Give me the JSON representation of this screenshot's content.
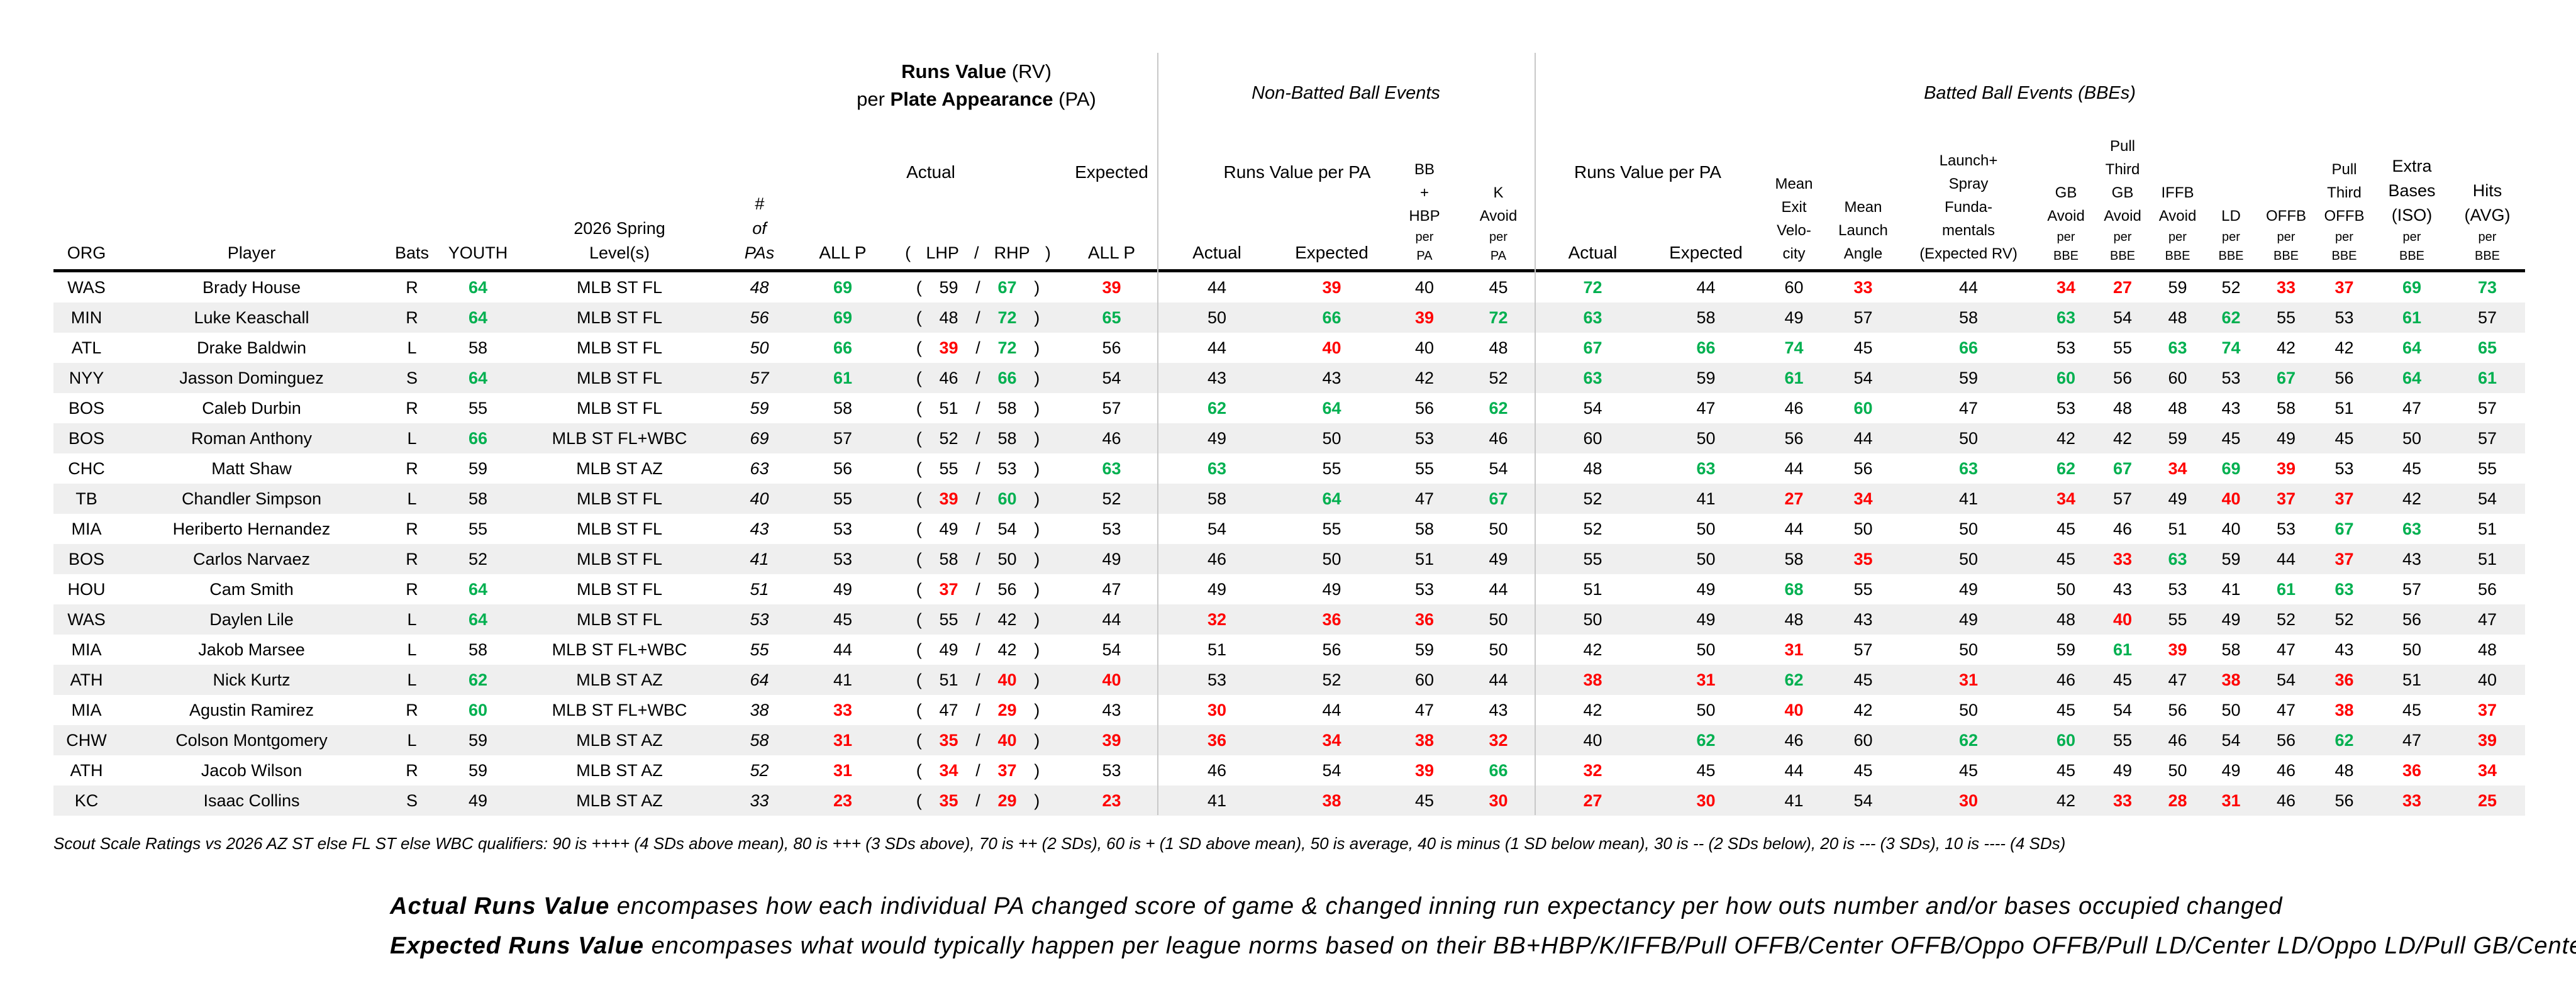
{
  "colors": {
    "green": "#00B050",
    "red": "#FF0000",
    "stripe": "#EFEFEF",
    "divider": "#C8C8C8"
  },
  "punct": {
    "open": "(",
    "slash": "/",
    "close": ")"
  },
  "header": {
    "rv": {
      "bold1": "Runs Value",
      "reg1": " (RV)",
      "reg2a": "per ",
      "bold2": "Plate Appearance",
      "reg2b": " (PA)"
    },
    "nbb_title": "Non-Batted Ball Events",
    "bbe_title": "Batted Ball Events (BBEs)",
    "actual_label": "Actual",
    "expected_label": "Expected",
    "rv_per_pa_label": "Runs Value per PA"
  },
  "columns": [
    {
      "key": "org",
      "header": [
        {
          "t": "ORG",
          "s": "lg"
        }
      ]
    },
    {
      "key": "player",
      "header": [
        {
          "t": "Player",
          "s": "lg"
        }
      ]
    },
    {
      "key": "bats",
      "header": [
        {
          "t": "Bats",
          "s": "lg"
        }
      ]
    },
    {
      "key": "youth",
      "header": [
        {
          "t": "YOUTH",
          "s": "lg"
        }
      ]
    },
    {
      "key": "level",
      "header": [
        {
          "t": "2026 Spring",
          "s": "lg"
        },
        {
          "t": "Level(s)",
          "s": "lg"
        }
      ]
    },
    {
      "key": "pas",
      "italic": true,
      "header": [
        {
          "t": "#",
          "s": "lg"
        },
        {
          "t": "of",
          "s": "lg"
        },
        {
          "t": "PAs",
          "s": "lg"
        }
      ]
    },
    {
      "key": "allp_actual",
      "header": [
        {
          "t": "ALL P",
          "s": "big"
        }
      ]
    },
    {
      "key": "lhp_rhp",
      "type": "pair",
      "pair_header": [
        "(",
        "LHP",
        "/",
        "RHP",
        ")"
      ]
    },
    {
      "key": "allp_expected",
      "header": [
        {
          "t": "ALL P",
          "s": "big"
        }
      ]
    },
    {
      "key": "nbb_actual",
      "header": [
        {
          "t": "Actual",
          "s": "big"
        }
      ]
    },
    {
      "key": "nbb_expected",
      "header": [
        {
          "t": "Expected",
          "s": "big"
        }
      ]
    },
    {
      "key": "bb_hbp",
      "header": [
        "BB",
        "+",
        "HBP",
        {
          "t": "per",
          "s": "sm"
        },
        {
          "t": "PA",
          "s": "sm"
        }
      ]
    },
    {
      "key": "k_avoid",
      "header": [
        "K",
        "Avoid",
        {
          "t": "per",
          "s": "sm"
        },
        {
          "t": "PA",
          "s": "sm"
        }
      ]
    },
    {
      "key": "bbe_actual",
      "header": [
        {
          "t": "Actual",
          "s": "big"
        }
      ]
    },
    {
      "key": "bbe_expected",
      "header": [
        {
          "t": "Expected",
          "s": "big"
        }
      ]
    },
    {
      "key": "mean_ev",
      "header": [
        "Mean",
        "Exit",
        "Velo-",
        "city"
      ]
    },
    {
      "key": "mean_la",
      "header": [
        "Mean",
        "Launch",
        "Angle"
      ]
    },
    {
      "key": "launch_spray",
      "header": [
        "Launch+",
        "Spray",
        "Funda-",
        "mentals",
        "(Expected RV)"
      ]
    },
    {
      "key": "gb_avoid",
      "header": [
        "GB",
        "Avoid",
        {
          "t": "per",
          "s": "sm"
        },
        {
          "t": "BBE",
          "s": "sm"
        }
      ]
    },
    {
      "key": "pull_third_gb_avoid",
      "header": [
        "Pull",
        "Third",
        "GB",
        "Avoid",
        {
          "t": "per",
          "s": "sm"
        },
        {
          "t": "BBE",
          "s": "sm"
        }
      ]
    },
    {
      "key": "iffb_avoid",
      "header": [
        "IFFB",
        "Avoid",
        {
          "t": "per",
          "s": "sm"
        },
        {
          "t": "BBE",
          "s": "sm"
        }
      ]
    },
    {
      "key": "ld",
      "header": [
        "LD",
        {
          "t": "per",
          "s": "sm"
        },
        {
          "t": "BBE",
          "s": "sm"
        }
      ]
    },
    {
      "key": "offb",
      "header": [
        "OFFB",
        {
          "t": "per",
          "s": "sm"
        },
        {
          "t": "BBE",
          "s": "sm"
        }
      ]
    },
    {
      "key": "pull_third_offb",
      "header": [
        "Pull",
        "Third",
        "OFFB",
        {
          "t": "per",
          "s": "sm"
        },
        {
          "t": "BBE",
          "s": "sm"
        }
      ]
    },
    {
      "key": "iso",
      "header": [
        {
          "t": "Extra",
          "s": "lg"
        },
        {
          "t": "Bases",
          "s": "lg"
        },
        {
          "t": "(ISO)",
          "s": "lg"
        },
        {
          "t": "per",
          "s": "sm"
        },
        {
          "t": "BBE",
          "s": "sm"
        }
      ]
    },
    {
      "key": "avg",
      "header": [
        {
          "t": "Hits",
          "s": "lg"
        },
        {
          "t": "(AVG)",
          "s": "lg"
        },
        {
          "t": "per",
          "s": "sm"
        },
        {
          "t": "BBE",
          "s": "sm"
        }
      ]
    }
  ],
  "rows": [
    {
      "cells": [
        "WAS",
        "Brady House",
        "R",
        [
          "64",
          "g"
        ],
        "MLB ST FL",
        "48",
        [
          "69",
          "g"
        ],
        "59",
        [
          "67",
          "g"
        ],
        [
          "39",
          "r"
        ],
        "44",
        [
          "39",
          "r"
        ],
        "40",
        "45",
        [
          "72",
          "g"
        ],
        "44",
        "60",
        [
          "33",
          "r"
        ],
        "44",
        [
          "34",
          "r"
        ],
        [
          "27",
          "r"
        ],
        "59",
        "52",
        [
          "33",
          "r"
        ],
        [
          "37",
          "r"
        ],
        [
          "69",
          "g"
        ],
        [
          "73",
          "g"
        ]
      ]
    },
    {
      "cells": [
        "MIN",
        "Luke Keaschall",
        "R",
        [
          "64",
          "g"
        ],
        "MLB ST FL",
        "56",
        [
          "69",
          "g"
        ],
        "48",
        [
          "72",
          "g"
        ],
        [
          "65",
          "g"
        ],
        "50",
        [
          "66",
          "g"
        ],
        [
          "39",
          "r"
        ],
        [
          "72",
          "g"
        ],
        [
          "63",
          "g"
        ],
        "58",
        "49",
        "57",
        "58",
        [
          "63",
          "g"
        ],
        "54",
        "48",
        [
          "62",
          "g"
        ],
        "55",
        "53",
        [
          "61",
          "g"
        ],
        "57"
      ]
    },
    {
      "cells": [
        "ATL",
        "Drake Baldwin",
        "L",
        "58",
        "MLB ST FL",
        "50",
        [
          "66",
          "g"
        ],
        [
          "39",
          "r"
        ],
        [
          "72",
          "g"
        ],
        "56",
        "44",
        [
          "40",
          "r"
        ],
        "40",
        "48",
        [
          "67",
          "g"
        ],
        [
          "66",
          "g"
        ],
        [
          "74",
          "g"
        ],
        "45",
        [
          "66",
          "g"
        ],
        "53",
        "55",
        [
          "63",
          "g"
        ],
        [
          "74",
          "g"
        ],
        "42",
        "42",
        [
          "64",
          "g"
        ],
        [
          "65",
          "g"
        ]
      ]
    },
    {
      "cells": [
        "NYY",
        "Jasson Dominguez",
        "S",
        [
          "64",
          "g"
        ],
        "MLB ST FL",
        "57",
        [
          "61",
          "g"
        ],
        "46",
        [
          "66",
          "g"
        ],
        "54",
        "43",
        "43",
        "42",
        "52",
        [
          "63",
          "g"
        ],
        "59",
        [
          "61",
          "g"
        ],
        "54",
        "59",
        [
          "60",
          "g"
        ],
        "56",
        "60",
        "53",
        [
          "67",
          "g"
        ],
        "56",
        [
          "64",
          "g"
        ],
        [
          "61",
          "g"
        ]
      ]
    },
    {
      "cells": [
        "BOS",
        "Caleb Durbin",
        "R",
        "55",
        "MLB ST FL",
        "59",
        "58",
        "51",
        "58",
        "57",
        [
          "62",
          "g"
        ],
        [
          "64",
          "g"
        ],
        "56",
        [
          "62",
          "g"
        ],
        "54",
        "47",
        "46",
        [
          "60",
          "g"
        ],
        "47",
        "53",
        "48",
        "48",
        "43",
        "58",
        "51",
        "47",
        "57"
      ]
    },
    {
      "cells": [
        "BOS",
        "Roman Anthony",
        "L",
        [
          "66",
          "g"
        ],
        "MLB ST FL+WBC",
        "69",
        "57",
        "52",
        "58",
        "46",
        "49",
        "50",
        "53",
        "46",
        "60",
        "50",
        "56",
        "44",
        "50",
        "42",
        "42",
        "59",
        "45",
        "49",
        "45",
        "50",
        "57"
      ]
    },
    {
      "cells": [
        "CHC",
        "Matt Shaw",
        "R",
        "59",
        "MLB ST AZ",
        "63",
        "56",
        "55",
        "53",
        [
          "63",
          "g"
        ],
        [
          "63",
          "g"
        ],
        "55",
        "55",
        "54",
        "48",
        [
          "63",
          "g"
        ],
        "44",
        "56",
        [
          "63",
          "g"
        ],
        [
          "62",
          "g"
        ],
        [
          "67",
          "g"
        ],
        [
          "34",
          "r"
        ],
        [
          "69",
          "g"
        ],
        [
          "39",
          "r"
        ],
        "53",
        "45",
        "55"
      ]
    },
    {
      "cells": [
        "TB",
        "Chandler Simpson",
        "L",
        "58",
        "MLB ST FL",
        "40",
        "55",
        [
          "39",
          "r"
        ],
        [
          "60",
          "g"
        ],
        "52",
        "58",
        [
          "64",
          "g"
        ],
        "47",
        [
          "67",
          "g"
        ],
        "52",
        "41",
        [
          "27",
          "r"
        ],
        [
          "34",
          "r"
        ],
        "41",
        [
          "34",
          "r"
        ],
        "57",
        "49",
        [
          "40",
          "r"
        ],
        [
          "37",
          "r"
        ],
        [
          "37",
          "r"
        ],
        "42",
        "54"
      ]
    },
    {
      "cells": [
        "MIA",
        "Heriberto Hernandez",
        "R",
        "55",
        "MLB ST FL",
        "43",
        "53",
        "49",
        "54",
        "53",
        "54",
        "55",
        "58",
        "50",
        "52",
        "50",
        "44",
        "50",
        "50",
        "45",
        "46",
        "51",
        "40",
        "53",
        [
          "67",
          "g"
        ],
        [
          "63",
          "g"
        ],
        "51"
      ]
    },
    {
      "cells": [
        "BOS",
        "Carlos Narvaez",
        "R",
        "52",
        "MLB ST FL",
        "41",
        "53",
        "58",
        "50",
        "49",
        "46",
        "50",
        "51",
        "49",
        "55",
        "50",
        "58",
        [
          "35",
          "r"
        ],
        "50",
        "45",
        [
          "33",
          "r"
        ],
        [
          "63",
          "g"
        ],
        "59",
        "44",
        [
          "37",
          "r"
        ],
        "43",
        "51"
      ]
    },
    {
      "cells": [
        "HOU",
        "Cam Smith",
        "R",
        [
          "64",
          "g"
        ],
        "MLB ST FL",
        "51",
        "49",
        [
          "37",
          "r"
        ],
        "56",
        "47",
        "49",
        "49",
        "53",
        "44",
        "51",
        "49",
        [
          "68",
          "g"
        ],
        "55",
        "49",
        "50",
        "43",
        "53",
        "41",
        [
          "61",
          "g"
        ],
        [
          "63",
          "g"
        ],
        "57",
        "56"
      ]
    },
    {
      "cells": [
        "WAS",
        "Daylen Lile",
        "L",
        [
          "64",
          "g"
        ],
        "MLB ST FL",
        "53",
        "45",
        "55",
        "42",
        "44",
        [
          "32",
          "r"
        ],
        [
          "36",
          "r"
        ],
        [
          "36",
          "r"
        ],
        "50",
        "50",
        "49",
        "48",
        "43",
        "49",
        "48",
        [
          "40",
          "r"
        ],
        "55",
        "49",
        "52",
        "52",
        "56",
        "47"
      ]
    },
    {
      "cells": [
        "MIA",
        "Jakob Marsee",
        "L",
        "58",
        "MLB ST FL+WBC",
        "55",
        "44",
        "49",
        "42",
        "54",
        "51",
        "56",
        "59",
        "50",
        "42",
        "50",
        [
          "31",
          "r"
        ],
        "57",
        "50",
        "59",
        [
          "61",
          "g"
        ],
        [
          "39",
          "r"
        ],
        "58",
        "47",
        "43",
        "50",
        "48"
      ]
    },
    {
      "cells": [
        "ATH",
        "Nick Kurtz",
        "L",
        [
          "62",
          "g"
        ],
        "MLB ST AZ",
        "64",
        "41",
        "51",
        [
          "40",
          "r"
        ],
        [
          "40",
          "r"
        ],
        "53",
        "52",
        "60",
        "44",
        [
          "38",
          "r"
        ],
        [
          "31",
          "r"
        ],
        [
          "62",
          "g"
        ],
        "45",
        [
          "31",
          "r"
        ],
        "46",
        "45",
        "47",
        [
          "38",
          "r"
        ],
        "54",
        [
          "36",
          "r"
        ],
        "51",
        "40"
      ]
    },
    {
      "cells": [
        "MIA",
        "Agustin Ramirez",
        "R",
        [
          "60",
          "g"
        ],
        "MLB ST FL+WBC",
        "38",
        [
          "33",
          "r"
        ],
        "47",
        [
          "29",
          "r"
        ],
        "43",
        [
          "30",
          "r"
        ],
        "44",
        "47",
        "43",
        "42",
        "50",
        [
          "40",
          "r"
        ],
        "42",
        "50",
        "45",
        "54",
        "56",
        "50",
        "47",
        [
          "38",
          "r"
        ],
        "45",
        [
          "37",
          "r"
        ]
      ]
    },
    {
      "cells": [
        "CHW",
        "Colson Montgomery",
        "L",
        "59",
        "MLB ST AZ",
        "58",
        [
          "31",
          "r"
        ],
        [
          "35",
          "r"
        ],
        [
          "40",
          "r"
        ],
        [
          "39",
          "r"
        ],
        [
          "36",
          "r"
        ],
        [
          "34",
          "r"
        ],
        [
          "38",
          "r"
        ],
        [
          "32",
          "r"
        ],
        "40",
        [
          "62",
          "g"
        ],
        "46",
        "60",
        [
          "62",
          "g"
        ],
        [
          "60",
          "g"
        ],
        "55",
        "46",
        "54",
        "56",
        [
          "62",
          "g"
        ],
        "47",
        [
          "39",
          "r"
        ]
      ]
    },
    {
      "cells": [
        "ATH",
        "Jacob Wilson",
        "R",
        "59",
        "MLB ST AZ",
        "52",
        [
          "31",
          "r"
        ],
        [
          "34",
          "r"
        ],
        [
          "37",
          "r"
        ],
        "53",
        "46",
        "54",
        [
          "39",
          "r"
        ],
        [
          "66",
          "g"
        ],
        [
          "32",
          "r"
        ],
        "45",
        "44",
        "45",
        "45",
        "45",
        "49",
        "50",
        "49",
        "46",
        "48",
        [
          "36",
          "r"
        ],
        [
          "34",
          "r"
        ]
      ]
    },
    {
      "cells": [
        "KC",
        "Isaac Collins",
        "S",
        "49",
        "MLB ST AZ",
        "33",
        [
          "23",
          "r"
        ],
        [
          "35",
          "r"
        ],
        [
          "29",
          "r"
        ],
        [
          "23",
          "r"
        ],
        "41",
        [
          "38",
          "r"
        ],
        "45",
        [
          "30",
          "r"
        ],
        [
          "27",
          "r"
        ],
        [
          "30",
          "r"
        ],
        "41",
        "54",
        [
          "30",
          "r"
        ],
        "42",
        [
          "33",
          "r"
        ],
        [
          "28",
          "r"
        ],
        [
          "31",
          "r"
        ],
        "46",
        "56",
        [
          "33",
          "r"
        ],
        [
          "25",
          "r"
        ]
      ]
    }
  ],
  "footnotes": {
    "scale": "Scout Scale Ratings vs 2026 AZ ST else FL ST else WBC qualifiers: 90 is ++++ (4 SDs above mean), 80 is +++ (3 SDs above), 70 is ++ (2 SDs), 60 is + (1 SD above mean), 50 is average, 40 is minus (1 SD below mean), 30 is -- (2 SDs below), 20 is --- (3 SDs), 10 is ---- (4 SDs)",
    "actual_lead": "Actual Runs Value",
    "actual_rest": "  encompases how each individual PA changed score of game & changed inning run expectancy per how outs number and/or bases occupied changed",
    "expected_lead": "Expected Runs Value",
    "expected_rest": "  encompases what would typically happen per league norms based on their BB+HBP/K/IFFB/Pull OFFB/Center OFFB/Oppo OFFB/Pull LD/Center LD/Oppo LD/Pull GB/Center GB/Oppo GB distribution"
  }
}
